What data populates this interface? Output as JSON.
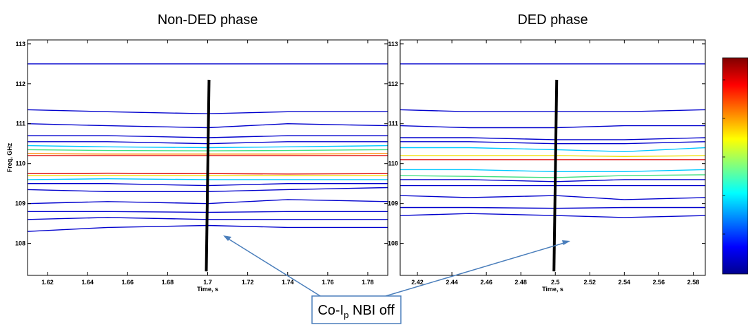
{
  "chart_data": [
    {
      "type": "contour",
      "title": "Non-DED phase",
      "xlabel": "Time, s",
      "ylabel": "Freq, GHz",
      "xlim": [
        1.61,
        1.79
      ],
      "ylim": [
        107.2,
        113.1
      ],
      "xticks": [
        1.62,
        1.64,
        1.66,
        1.68,
        1.7,
        1.72,
        1.74,
        1.76,
        1.78
      ],
      "yticks": [
        108,
        109,
        110,
        111,
        112,
        113
      ],
      "marker_x": 1.7,
      "x": [
        1.61,
        1.65,
        1.7,
        1.74,
        1.79
      ],
      "series": [
        {
          "color": "#0000cd",
          "values": [
            112.5,
            112.5,
            112.5,
            112.5,
            112.5
          ]
        },
        {
          "color": "#0000cd",
          "values": [
            111.35,
            111.3,
            111.25,
            111.3,
            111.3
          ]
        },
        {
          "color": "#0000cd",
          "values": [
            111.0,
            110.95,
            110.9,
            111.0,
            110.95
          ]
        },
        {
          "color": "#0000cd",
          "values": [
            110.7,
            110.7,
            110.65,
            110.7,
            110.7
          ]
        },
        {
          "color": "#0000cd",
          "values": [
            110.55,
            110.55,
            110.5,
            110.55,
            110.55
          ]
        },
        {
          "color": "#00c8ff",
          "values": [
            110.45,
            110.42,
            110.4,
            110.42,
            110.45
          ]
        },
        {
          "color": "#40e080",
          "values": [
            110.35,
            110.33,
            110.32,
            110.33,
            110.35
          ]
        },
        {
          "color": "#ff8c00",
          "values": [
            110.25,
            110.24,
            110.24,
            110.24,
            110.25
          ]
        },
        {
          "color": "#e00000",
          "values": [
            110.2,
            110.2,
            110.2,
            110.2,
            110.2
          ]
        },
        {
          "color": "#e00000",
          "values": [
            109.75,
            109.76,
            109.75,
            109.74,
            109.75
          ]
        },
        {
          "color": "#f0e000",
          "values": [
            109.7,
            109.7,
            109.7,
            109.7,
            109.7
          ]
        },
        {
          "color": "#00c8ff",
          "values": [
            109.6,
            109.62,
            109.6,
            109.6,
            109.6
          ]
        },
        {
          "color": "#0000cd",
          "values": [
            109.5,
            109.5,
            109.45,
            109.5,
            109.5
          ]
        },
        {
          "color": "#0000cd",
          "values": [
            109.35,
            109.3,
            109.3,
            109.35,
            109.4
          ]
        },
        {
          "color": "#0000cd",
          "values": [
            109.0,
            109.05,
            109.0,
            109.1,
            109.05
          ]
        },
        {
          "color": "#0000cd",
          "values": [
            108.8,
            108.8,
            108.78,
            108.8,
            108.8
          ]
        },
        {
          "color": "#0000cd",
          "values": [
            108.6,
            108.65,
            108.6,
            108.6,
            108.6
          ]
        },
        {
          "color": "#0000cd",
          "values": [
            108.3,
            108.4,
            108.45,
            108.4,
            108.4
          ]
        }
      ]
    },
    {
      "type": "contour",
      "title": "DED phase",
      "xlabel": "Time, s",
      "xlim": [
        2.41,
        2.587
      ],
      "ylim": [
        107.2,
        113.1
      ],
      "xticks": [
        2.42,
        2.44,
        2.46,
        2.48,
        2.5,
        2.52,
        2.54,
        2.56,
        2.58
      ],
      "yticks": [
        108,
        109,
        110,
        111,
        112,
        113
      ],
      "marker_x": 2.5,
      "x": [
        2.41,
        2.45,
        2.5,
        2.54,
        2.587
      ],
      "series": [
        {
          "color": "#0000cd",
          "values": [
            112.5,
            112.5,
            112.5,
            112.5,
            112.5
          ]
        },
        {
          "color": "#0000cd",
          "values": [
            111.35,
            111.3,
            111.3,
            111.3,
            111.35
          ]
        },
        {
          "color": "#0000cd",
          "values": [
            110.95,
            110.9,
            110.9,
            110.95,
            110.95
          ]
        },
        {
          "color": "#0000cd",
          "values": [
            110.65,
            110.65,
            110.6,
            110.6,
            110.65
          ]
        },
        {
          "color": "#0000cd",
          "values": [
            110.55,
            110.55,
            110.5,
            110.5,
            110.55
          ]
        },
        {
          "color": "#00c8ff",
          "values": [
            110.4,
            110.4,
            110.35,
            110.3,
            110.4
          ]
        },
        {
          "color": "#f0e000",
          "values": [
            110.2,
            110.2,
            110.2,
            110.18,
            110.2
          ]
        },
        {
          "color": "#e00000",
          "values": [
            110.1,
            110.1,
            110.1,
            110.1,
            110.1
          ]
        },
        {
          "color": "#00c8ff",
          "values": [
            109.85,
            109.85,
            109.8,
            109.8,
            109.85
          ]
        },
        {
          "color": "#40e080",
          "values": [
            109.7,
            109.68,
            109.65,
            109.7,
            109.72
          ]
        },
        {
          "color": "#0000cd",
          "values": [
            109.6,
            109.6,
            109.55,
            109.6,
            109.6
          ]
        },
        {
          "color": "#0000cd",
          "values": [
            109.45,
            109.45,
            109.45,
            109.45,
            109.45
          ]
        },
        {
          "color": "#0000cd",
          "values": [
            109.2,
            109.15,
            109.2,
            109.1,
            109.15
          ]
        },
        {
          "color": "#0000cd",
          "values": [
            108.9,
            108.9,
            108.88,
            108.9,
            108.9
          ]
        },
        {
          "color": "#0000cd",
          "values": [
            108.7,
            108.75,
            108.7,
            108.65,
            108.7
          ]
        }
      ]
    }
  ],
  "annotation": [
    "Co-I",
    "p",
    " NBI off"
  ]
}
